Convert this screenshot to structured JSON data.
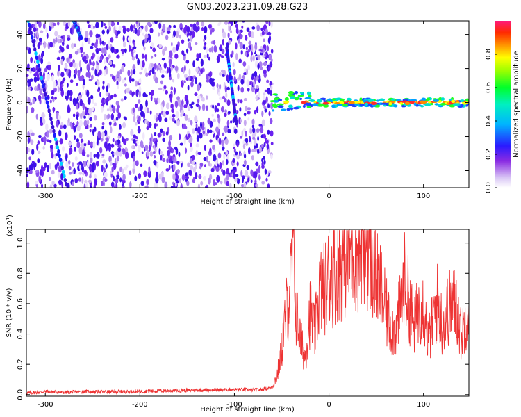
{
  "title": "GN03.2023.231.09.28.G23",
  "colors": {
    "snr_line": "#ee3333",
    "axis": "#000000"
  },
  "chart_data": [
    {
      "type": "heatmap",
      "xlabel": "Height of straight line (km)",
      "ylabel": "Frequency (Hz)",
      "xlim": [
        -320,
        148
      ],
      "ylim": [
        -50,
        48
      ],
      "x_ticks": [
        -300,
        -200,
        -100,
        0,
        100
      ],
      "x_tick_labels": [
        "-300",
        "-200",
        "-100",
        "0",
        "100"
      ],
      "y_ticks": [
        -40,
        -20,
        0,
        20,
        40
      ],
      "y_tick_labels": [
        "-40",
        "-20",
        "0",
        "20",
        "40"
      ],
      "noise_region_x": [
        -320,
        -60
      ],
      "signal_band": {
        "x_range": [
          -60,
          148
        ],
        "center_frequency_hz": 0,
        "peak_amplitude": 0.95
      },
      "doppler_traces": [
        {
          "x_start": -318,
          "f_start": 48,
          "x_end": -278,
          "f_end": -48
        },
        {
          "x_start": -270,
          "f_start": 48,
          "x_end": -262,
          "f_end": 38
        },
        {
          "x_start": -108,
          "f_start": 32,
          "x_end": -98,
          "f_end": -12
        }
      ],
      "colorbar": {
        "label": "Normalized spectral amplitude",
        "range": [
          0,
          1
        ],
        "ticks": [
          0.0,
          0.2,
          0.4,
          0.6,
          0.8
        ],
        "tick_labels": [
          "0.0",
          "0.2",
          "0.4",
          "0.6",
          "0.8"
        ],
        "colormap": "rainbow (white→violet→blue→cyan→green→yellow→red→magenta)"
      }
    },
    {
      "type": "line",
      "xlabel": "Height of straight line (km)",
      "ylabel": "SNR (10 * v/v)",
      "scale_note": "(x10",
      "scale_exponent": "4",
      "xlim": [
        -320,
        148
      ],
      "ylim": [
        -0.01,
        1.09
      ],
      "x_ticks": [
        -300,
        -200,
        -100,
        0,
        100
      ],
      "x_tick_labels": [
        "-300",
        "-200",
        "-100",
        "0",
        "100"
      ],
      "y_ticks": [
        0.0,
        0.2,
        0.4,
        0.6,
        0.8,
        1.0
      ],
      "y_tick_labels": [
        "0.0",
        "0.2",
        "0.4",
        "0.6",
        "0.8",
        "1.0"
      ],
      "series": [
        {
          "color": "#ee3333",
          "x": [
            -320,
            -300,
            -280,
            -260,
            -240,
            -220,
            -200,
            -180,
            -160,
            -140,
            -120,
            -100,
            -80,
            -70,
            -60,
            -55,
            -50,
            -45,
            -40,
            -38,
            -35,
            -30,
            -25,
            -20,
            -15,
            -10,
            -5,
            0,
            5,
            10,
            15,
            20,
            25,
            30,
            35,
            40,
            45,
            50,
            55,
            60,
            65,
            70,
            75,
            80,
            85,
            90,
            95,
            100,
            105,
            110,
            115,
            120,
            125,
            130,
            135,
            140,
            145,
            148
          ],
          "y": [
            0.01,
            0.02,
            0.015,
            0.02,
            0.018,
            0.02,
            0.022,
            0.025,
            0.027,
            0.03,
            0.032,
            0.035,
            0.03,
            0.035,
            0.05,
            0.12,
            0.3,
            0.55,
            0.75,
            1.05,
            0.55,
            0.35,
            0.25,
            0.55,
            0.4,
            0.68,
            0.7,
            0.78,
            0.8,
            0.85,
            0.88,
            0.92,
            0.98,
            0.95,
            0.99,
            1.0,
            0.88,
            0.75,
            0.7,
            0.55,
            0.45,
            0.42,
            0.55,
            0.75,
            0.6,
            0.45,
            0.58,
            0.6,
            0.35,
            0.48,
            0.62,
            0.45,
            0.55,
            0.6,
            0.58,
            0.38,
            0.52,
            0.6
          ]
        }
      ]
    }
  ]
}
